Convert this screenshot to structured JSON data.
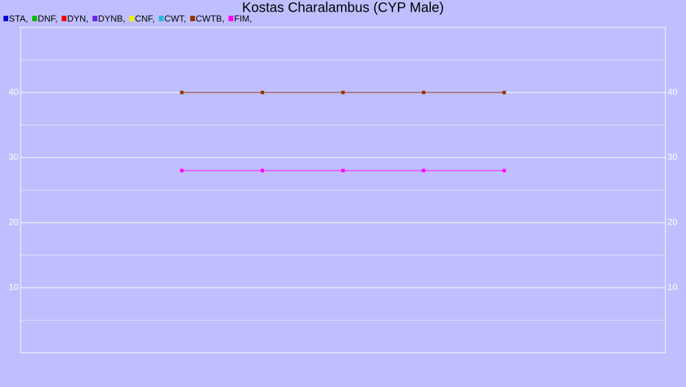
{
  "chart_data": {
    "type": "line",
    "title": "Kostas Charalambus (CYP Male)",
    "categories": [
      null,
      null,
      null,
      null,
      null,
      null,
      null,
      null,
      null
    ],
    "series": [
      {
        "name": "STA,",
        "color": "#0000dd",
        "values": [
          null,
          null,
          null,
          null,
          null,
          null,
          null,
          null,
          null
        ]
      },
      {
        "name": "DNF,",
        "color": "#00bb00",
        "values": [
          null,
          null,
          null,
          null,
          null,
          null,
          null,
          null,
          null
        ]
      },
      {
        "name": "DYN,",
        "color": "#ee0000",
        "values": [
          null,
          null,
          null,
          null,
          null,
          null,
          null,
          null,
          null
        ]
      },
      {
        "name": "DYNB,",
        "color": "#6622ee",
        "values": [
          null,
          null,
          null,
          null,
          null,
          null,
          null,
          null,
          null
        ]
      },
      {
        "name": "CNF,",
        "color": "#eeee00",
        "values": [
          null,
          null,
          null,
          null,
          null,
          null,
          null,
          null,
          null
        ]
      },
      {
        "name": "CWT,",
        "color": "#22bbdd",
        "values": [
          null,
          null,
          null,
          null,
          null,
          null,
          null,
          null,
          null
        ]
      },
      {
        "name": "CWTB,",
        "color": "#993300",
        "values": [
          null,
          null,
          40,
          40,
          40,
          40,
          40,
          null,
          null
        ]
      },
      {
        "name": "FIM,",
        "color": "#ff00ff",
        "values": [
          null,
          null,
          28,
          28,
          28,
          28,
          28,
          null,
          null
        ]
      }
    ],
    "ylim": [
      0,
      50
    ],
    "yticks": [
      10,
      20,
      30,
      40
    ],
    "minor_yticks": [
      5,
      15,
      25,
      35,
      45
    ],
    "grid": true
  }
}
